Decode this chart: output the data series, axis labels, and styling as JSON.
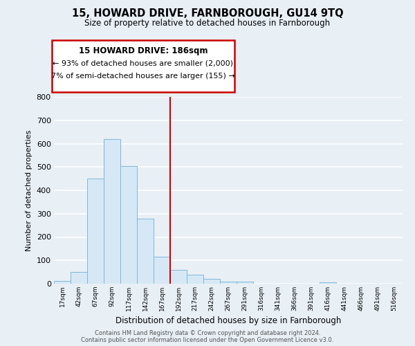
{
  "title": "15, HOWARD DRIVE, FARNBOROUGH, GU14 9TQ",
  "subtitle": "Size of property relative to detached houses in Farnborough",
  "xlabel": "Distribution of detached houses by size in Farnborough",
  "ylabel": "Number of detached properties",
  "bin_labels": [
    "17sqm",
    "42sqm",
    "67sqm",
    "92sqm",
    "117sqm",
    "142sqm",
    "167sqm",
    "192sqm",
    "217sqm",
    "242sqm",
    "267sqm",
    "291sqm",
    "316sqm",
    "341sqm",
    "366sqm",
    "391sqm",
    "416sqm",
    "441sqm",
    "466sqm",
    "491sqm",
    "516sqm"
  ],
  "bar_values": [
    12,
    50,
    450,
    620,
    505,
    280,
    115,
    60,
    38,
    22,
    9,
    8,
    0,
    0,
    0,
    0,
    5,
    0,
    0,
    0,
    0
  ],
  "bar_color": "#d6e8f5",
  "bar_edge_color": "#7fb8d8",
  "vline_color": "#cc0000",
  "ylim": [
    0,
    800
  ],
  "yticks": [
    0,
    100,
    200,
    300,
    400,
    500,
    600,
    700,
    800
  ],
  "annotation_title": "15 HOWARD DRIVE: 186sqm",
  "annotation_line1": "← 93% of detached houses are smaller (2,000)",
  "annotation_line2": "7% of semi-detached houses are larger (155) →",
  "footer_line1": "Contains HM Land Registry data © Crown copyright and database right 2024.",
  "footer_line2": "Contains public sector information licensed under the Open Government Licence v3.0.",
  "background_color": "#e8eff5",
  "plot_bg_color": "#e8eff5",
  "grid_color": "#ffffff"
}
